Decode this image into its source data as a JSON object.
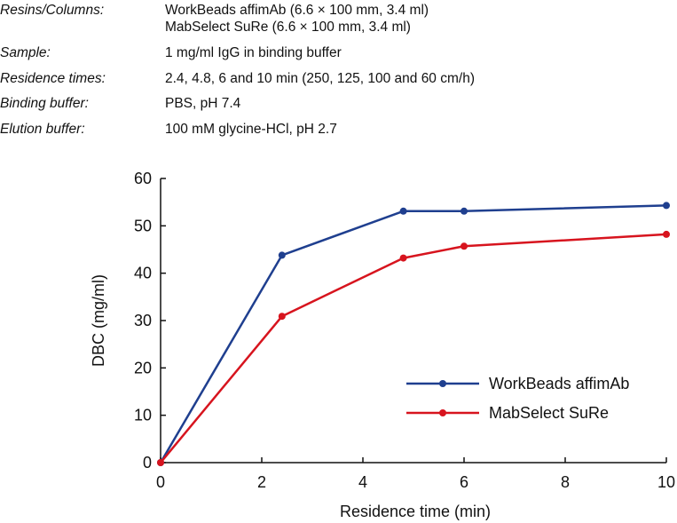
{
  "conditions": [
    {
      "label": "Resins/Columns:",
      "values": [
        "WorkBeads affimAb (6.6 × 100 mm, 3.4 ml)",
        "MabSelect SuRe (6.6 × 100 mm, 3.4 ml)"
      ]
    },
    {
      "label": "Sample:",
      "values": [
        "1 mg/ml IgG in binding buffer"
      ]
    },
    {
      "label": "Residence times:",
      "values": [
        "2.4, 4.8, 6 and 10 min (250, 125, 100 and 60 cm/h)"
      ]
    },
    {
      "label": "Binding buffer:",
      "values": [
        "PBS, pH 7.4"
      ]
    },
    {
      "label": "Elution buffer:",
      "values": [
        "100 mM glycine-HCl, pH 2.7"
      ]
    }
  ],
  "chart_data": {
    "type": "line",
    "title": "",
    "xlabel": "Residence time (min)",
    "ylabel": "DBC (mg/ml)",
    "xlim": [
      0,
      10
    ],
    "ylim": [
      0,
      60
    ],
    "xticks": [
      0,
      2,
      4,
      6,
      8,
      10
    ],
    "yticks": [
      0,
      10,
      20,
      30,
      40,
      50,
      60
    ],
    "grid": false,
    "legend_position": "bottom-right",
    "series": [
      {
        "name": "WorkBeads affimAb",
        "color": "#1f3f8f",
        "x": [
          0,
          2.4,
          4.8,
          6,
          10
        ],
        "y": [
          0,
          43.8,
          53.1,
          53.1,
          54.3
        ]
      },
      {
        "name": "MabSelect SuRe",
        "color": "#d7141e",
        "x": [
          0,
          2.4,
          4.8,
          6,
          10
        ],
        "y": [
          0,
          30.9,
          43.2,
          45.7,
          48.2
        ]
      }
    ]
  }
}
